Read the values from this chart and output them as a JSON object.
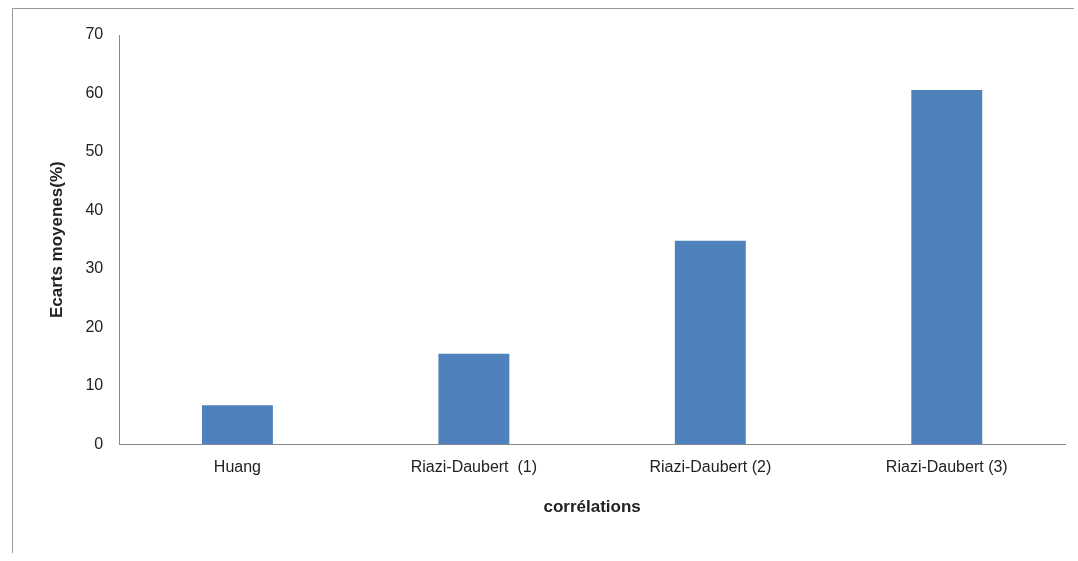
{
  "chart_data": {
    "type": "bar",
    "xlabel": "corrélations",
    "ylabel": "Ecarts moyenes(%)",
    "categories": [
      "Huang",
      "Riazi-Daubert  (1)",
      "Riazi-Daubert (2)",
      "Riazi-Daubert (3)"
    ],
    "values": [
      6.7,
      15.5,
      34.8,
      60.6
    ],
    "color": "#4f81bd",
    "ylim": [
      0,
      70
    ],
    "yticks": [
      0,
      10,
      20,
      30,
      40,
      50,
      60,
      70
    ],
    "grid": false,
    "legend": false
  }
}
